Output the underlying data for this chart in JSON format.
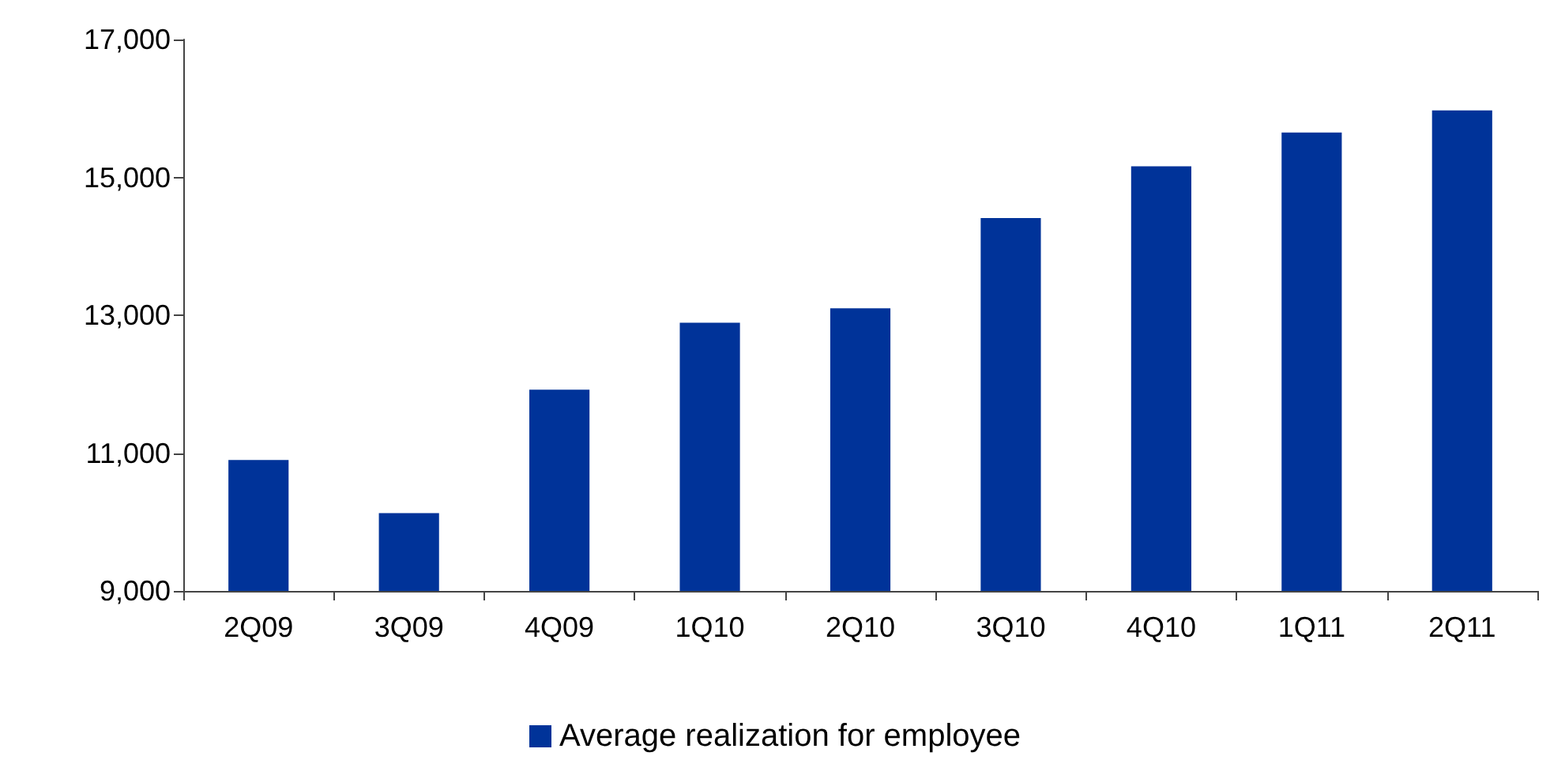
{
  "chart_data": {
    "type": "bar",
    "categories": [
      "2Q09",
      "3Q09",
      "4Q09",
      "1Q10",
      "2Q10",
      "3Q10",
      "4Q10",
      "1Q11",
      "2Q11"
    ],
    "series": [
      {
        "name": "Average realization for employee",
        "color": "#003399",
        "values": [
          10900,
          10130,
          11920,
          12890,
          13100,
          14410,
          15160,
          15650,
          15970
        ]
      }
    ],
    "ylim": [
      9000,
      17000
    ],
    "yticks": [
      {
        "value": 9000,
        "label": "9,000"
      },
      {
        "value": 11000,
        "label": "11,000"
      },
      {
        "value": 13000,
        "label": "13,000"
      },
      {
        "value": 15000,
        "label": "15,000"
      },
      {
        "value": 17000,
        "label": "17,000"
      }
    ],
    "grid": false,
    "legend": "bottom"
  }
}
